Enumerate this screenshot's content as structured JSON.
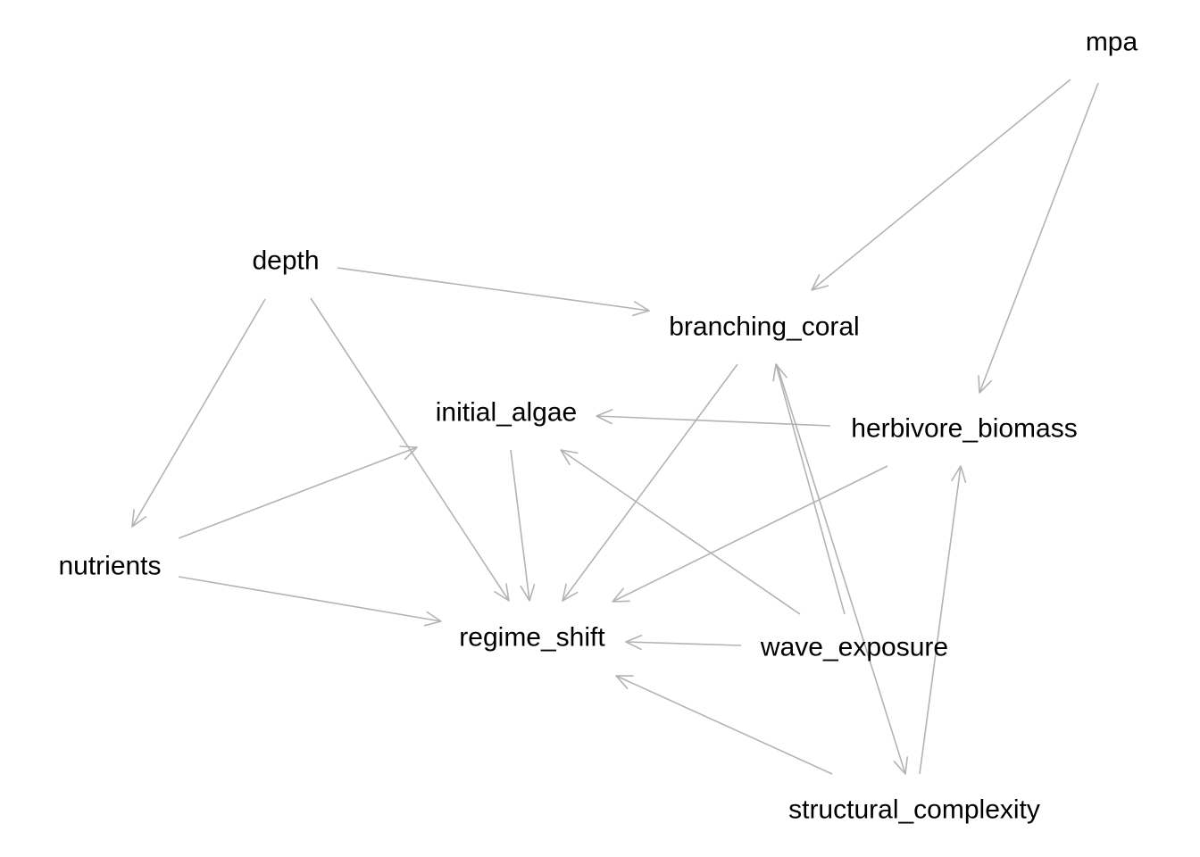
{
  "graph": {
    "nodes": [
      {
        "id": "mpa",
        "label": "mpa"
      },
      {
        "id": "depth",
        "label": "depth"
      },
      {
        "id": "branching_coral",
        "label": "branching_coral"
      },
      {
        "id": "initial_algae",
        "label": "initial_algae"
      },
      {
        "id": "herbivore_biomass",
        "label": "herbivore_biomass"
      },
      {
        "id": "nutrients",
        "label": "nutrients"
      },
      {
        "id": "regime_shift",
        "label": "regime_shift"
      },
      {
        "id": "wave_exposure",
        "label": "wave_exposure"
      },
      {
        "id": "structural_complexity",
        "label": "structural_complexity"
      }
    ],
    "edges": [
      {
        "from": "mpa",
        "to": "branching_coral"
      },
      {
        "from": "mpa",
        "to": "herbivore_biomass"
      },
      {
        "from": "depth",
        "to": "branching_coral"
      },
      {
        "from": "depth",
        "to": "nutrients"
      },
      {
        "from": "depth",
        "to": "regime_shift"
      },
      {
        "from": "branching_coral",
        "to": "regime_shift"
      },
      {
        "from": "branching_coral",
        "to": "structural_complexity"
      },
      {
        "from": "herbivore_biomass",
        "to": "initial_algae"
      },
      {
        "from": "herbivore_biomass",
        "to": "regime_shift"
      },
      {
        "from": "nutrients",
        "to": "initial_algae"
      },
      {
        "from": "nutrients",
        "to": "regime_shift"
      },
      {
        "from": "initial_algae",
        "to": "regime_shift"
      },
      {
        "from": "wave_exposure",
        "to": "initial_algae"
      },
      {
        "from": "wave_exposure",
        "to": "regime_shift"
      },
      {
        "from": "wave_exposure",
        "to": "branching_coral"
      },
      {
        "from": "structural_complexity",
        "to": "regime_shift"
      },
      {
        "from": "structural_complexity",
        "to": "herbivore_biomass"
      }
    ]
  }
}
